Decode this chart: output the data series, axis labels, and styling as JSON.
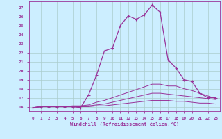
{
  "xlabel": "Windchill (Refroidissement éolien,°C)",
  "bg_color": "#cceeff",
  "line_color": "#993399",
  "grid_color": "#aacccc",
  "xlim": [
    -0.5,
    23.5
  ],
  "ylim": [
    15.5,
    27.7
  ],
  "yticks": [
    16,
    17,
    18,
    19,
    20,
    21,
    22,
    23,
    24,
    25,
    26,
    27
  ],
  "xticks": [
    0,
    1,
    2,
    3,
    4,
    5,
    6,
    7,
    8,
    9,
    10,
    11,
    12,
    13,
    14,
    15,
    16,
    17,
    18,
    19,
    20,
    21,
    22,
    23
  ],
  "series": [
    {
      "x": [
        0,
        1,
        2,
        3,
        4,
        5,
        6,
        7,
        8,
        9,
        10,
        11,
        12,
        13,
        14,
        15,
        16,
        17,
        18,
        19,
        20,
        21,
        22,
        23
      ],
      "y": [
        15.9,
        16.0,
        16.0,
        16.0,
        16.0,
        16.0,
        15.9,
        17.3,
        19.5,
        22.2,
        22.5,
        25.0,
        26.1,
        25.7,
        26.2,
        27.3,
        26.5,
        21.2,
        20.3,
        19.0,
        18.8,
        17.5,
        17.0,
        17.0
      ],
      "marker": true
    },
    {
      "x": [
        0,
        1,
        2,
        3,
        4,
        5,
        6,
        7,
        8,
        9,
        10,
        11,
        12,
        13,
        14,
        15,
        16,
        17,
        18,
        19,
        20,
        21,
        22,
        23
      ],
      "y": [
        15.9,
        16.0,
        16.0,
        16.0,
        16.0,
        16.1,
        16.1,
        16.2,
        16.5,
        16.7,
        17.0,
        17.3,
        17.6,
        17.9,
        18.2,
        18.5,
        18.5,
        18.3,
        18.3,
        18.0,
        17.8,
        17.5,
        17.2,
        16.9
      ],
      "marker": false
    },
    {
      "x": [
        0,
        1,
        2,
        3,
        4,
        5,
        6,
        7,
        8,
        9,
        10,
        11,
        12,
        13,
        14,
        15,
        16,
        17,
        18,
        19,
        20,
        21,
        22,
        23
      ],
      "y": [
        15.9,
        16.0,
        16.0,
        16.0,
        16.0,
        16.0,
        16.0,
        16.1,
        16.2,
        16.3,
        16.5,
        16.7,
        16.9,
        17.1,
        17.3,
        17.5,
        17.5,
        17.4,
        17.3,
        17.2,
        17.1,
        17.0,
        16.9,
        16.8
      ],
      "marker": false
    },
    {
      "x": [
        0,
        1,
        2,
        3,
        4,
        5,
        6,
        7,
        8,
        9,
        10,
        11,
        12,
        13,
        14,
        15,
        16,
        17,
        18,
        19,
        20,
        21,
        22,
        23
      ],
      "y": [
        15.9,
        16.0,
        16.0,
        16.0,
        16.0,
        16.0,
        16.0,
        16.0,
        16.1,
        16.1,
        16.2,
        16.3,
        16.4,
        16.5,
        16.6,
        16.7,
        16.7,
        16.7,
        16.6,
        16.6,
        16.5,
        16.4,
        16.4,
        16.3
      ],
      "marker": false
    }
  ]
}
